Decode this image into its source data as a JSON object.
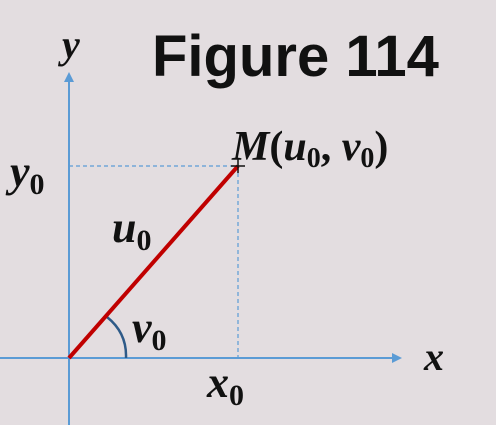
{
  "figure": {
    "title": "Figure 114",
    "axes": {
      "x_label": "x",
      "y_label": "y"
    },
    "point": {
      "name": "M",
      "coord_u": "u",
      "coord_v": "v",
      "subscript": "0"
    },
    "segment_label": {
      "base": "u",
      "subscript": "0"
    },
    "angle_label": {
      "base": "v",
      "subscript": "0"
    },
    "x_projection": {
      "base": "x",
      "subscript": "0"
    },
    "y_projection": {
      "base": "y",
      "subscript": "0"
    },
    "colors": {
      "axis": "#5b9bd5",
      "segment": "#c00000",
      "guide": "#5b9bd5",
      "arc": "#2e5a88",
      "text": "#111111",
      "background": "#e3dde0"
    }
  }
}
